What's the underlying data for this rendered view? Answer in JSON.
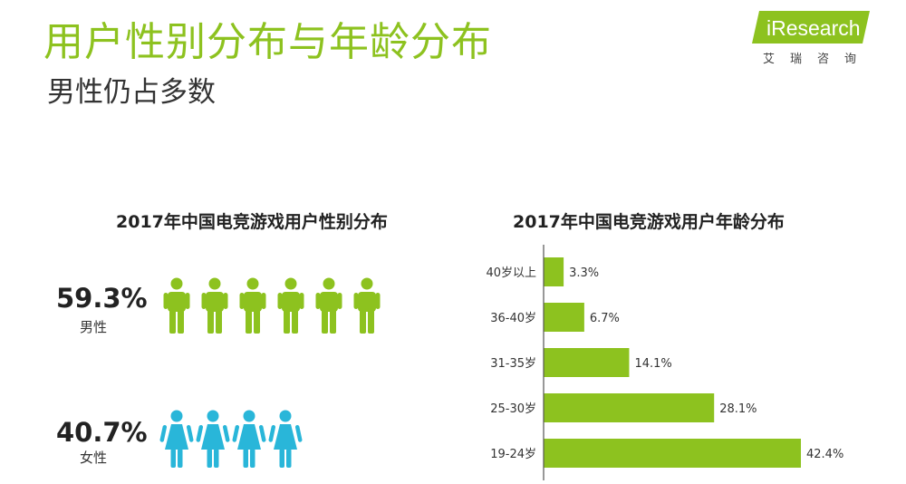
{
  "header": {
    "title": "用户性别分布与年龄分布",
    "subtitle": "男性仍占多数"
  },
  "logo": {
    "text": "iResearch",
    "subtitle": "艾瑞咨询"
  },
  "colors": {
    "accent": "#8dc21f",
    "male": "#8dc21f",
    "female": "#29b6d9",
    "bar": "#8dc21f"
  },
  "gender_chart": {
    "title": "2017年中国电竞游戏用户性别分布",
    "male": {
      "percent": "59.3%",
      "label": "男性",
      "icon_count": 6,
      "icon": "male-person-icon"
    },
    "female": {
      "percent": "40.7%",
      "label": "女性",
      "icon_count": 4,
      "icon": "female-person-icon"
    }
  },
  "chart_data": [
    {
      "type": "pie",
      "title": "2017年中国电竞游戏用户性别分布",
      "categories": [
        "男性",
        "女性"
      ],
      "values": [
        59.3,
        40.7
      ],
      "unit": "%"
    },
    {
      "type": "bar",
      "orientation": "horizontal",
      "title": "2017年中国电竞游戏用户年龄分布",
      "categories": [
        "40岁以上",
        "36-40岁",
        "31-35岁",
        "25-30岁",
        "19-24岁"
      ],
      "values": [
        3.3,
        6.7,
        14.1,
        28.1,
        42.4
      ],
      "labels": [
        "3.3%",
        "6.7%",
        "14.1%",
        "28.1%",
        "42.4%"
      ],
      "unit": "%",
      "xlim": [
        0,
        42.4
      ]
    }
  ]
}
